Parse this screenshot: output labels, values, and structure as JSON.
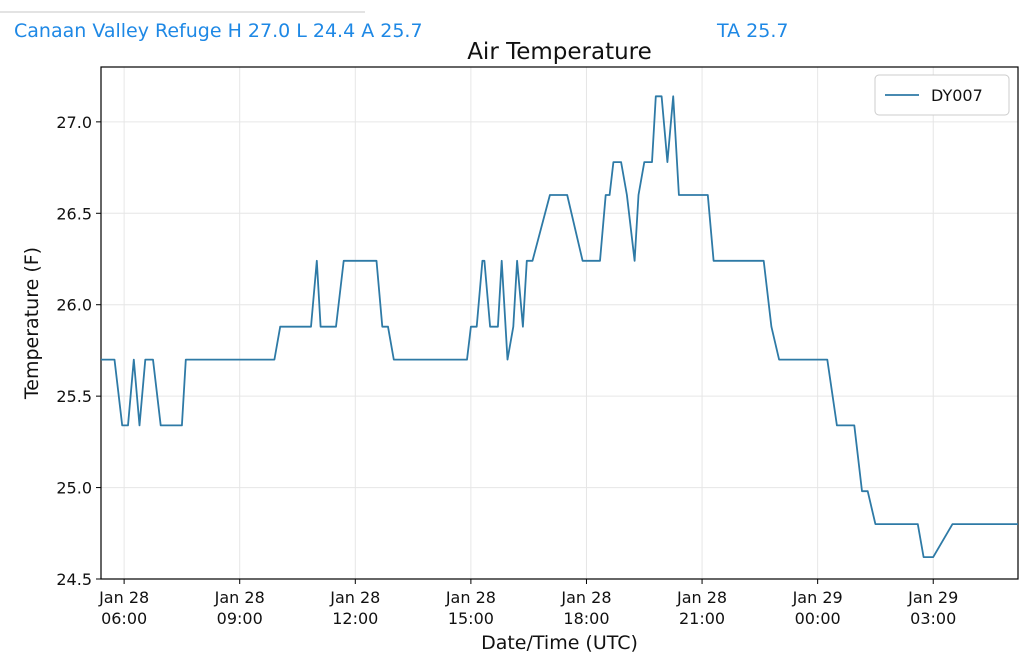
{
  "header": {
    "stats": "Canaan Valley Refuge H 27.0 L 24.4 A 25.7",
    "ta": "TA 25.7"
  },
  "chart_data": {
    "type": "line",
    "title": "Air Temperature",
    "xlabel": "Date/Time (UTC)",
    "ylabel": "Temperature (F)",
    "xlim": [
      5.4,
      29.2
    ],
    "ylim": [
      24.5,
      27.3
    ],
    "y_ticks": [
      {
        "value": 24.5,
        "label": "24.5"
      },
      {
        "value": 25.0,
        "label": "25.0"
      },
      {
        "value": 25.5,
        "label": "25.5"
      },
      {
        "value": 26.0,
        "label": "26.0"
      },
      {
        "value": 26.5,
        "label": "26.5"
      },
      {
        "value": 27.0,
        "label": "27.0"
      }
    ],
    "x_ticks": [
      {
        "value": 6,
        "line1": "Jan 28",
        "line2": "06:00"
      },
      {
        "value": 9,
        "line1": "Jan 28",
        "line2": "09:00"
      },
      {
        "value": 12,
        "line1": "Jan 28",
        "line2": "12:00"
      },
      {
        "value": 15,
        "line1": "Jan 28",
        "line2": "15:00"
      },
      {
        "value": 18,
        "line1": "Jan 28",
        "line2": "18:00"
      },
      {
        "value": 21,
        "line1": "Jan 28",
        "line2": "21:00"
      },
      {
        "value": 24,
        "line1": "Jan 29",
        "line2": "00:00"
      },
      {
        "value": 27,
        "line1": "Jan 29",
        "line2": "03:00"
      }
    ],
    "grid": true,
    "legend_position": "top-right",
    "series": [
      {
        "name": "DY007",
        "color": "#2e7aa6",
        "x": [
          5.4,
          5.75,
          5.95,
          6.1,
          6.25,
          6.4,
          6.55,
          6.75,
          6.95,
          7.1,
          7.5,
          7.6,
          7.75,
          8.2,
          8.6,
          9,
          9.5,
          9.9,
          10.05,
          10.5,
          10.85,
          11,
          11.1,
          11.5,
          11.7,
          12,
          12.5,
          12.55,
          12.7,
          12.85,
          13,
          13.5,
          14,
          14.5,
          14.9,
          15,
          15.15,
          15.3,
          15.35,
          15.5,
          15.7,
          15.8,
          15.95,
          16.1,
          16.2,
          16.35,
          16.45,
          16.6,
          17.05,
          17.5,
          17.9,
          18.25,
          18.35,
          18.5,
          18.6,
          18.7,
          18.9,
          19.05,
          19.25,
          19.35,
          19.5,
          19.7,
          19.8,
          19.95,
          20.1,
          20.25,
          20.4,
          20.8,
          21.15,
          21.3,
          21.5,
          22,
          22.5,
          22.6,
          22.8,
          23,
          23.5,
          24,
          24.25,
          24.5,
          24.95,
          25.15,
          25.3,
          25.5,
          25.9,
          26.2,
          26.6,
          26.75,
          27,
          27.5,
          28,
          28.5,
          29.2
        ],
        "y": [
          25.7,
          25.7,
          25.34,
          25.34,
          25.7,
          25.34,
          25.7,
          25.7,
          25.34,
          25.34,
          25.34,
          25.7,
          25.7,
          25.7,
          25.7,
          25.7,
          25.7,
          25.7,
          25.88,
          25.88,
          25.88,
          26.24,
          25.88,
          25.88,
          26.24,
          26.24,
          26.24,
          26.24,
          25.88,
          25.88,
          25.7,
          25.7,
          25.7,
          25.7,
          25.7,
          25.88,
          25.88,
          26.24,
          26.24,
          25.88,
          25.88,
          26.24,
          25.7,
          25.88,
          26.24,
          25.88,
          26.24,
          26.24,
          26.6,
          26.6,
          26.24,
          26.24,
          26.24,
          26.6,
          26.6,
          26.78,
          26.78,
          26.6,
          26.24,
          26.6,
          26.78,
          26.78,
          27.14,
          27.14,
          26.78,
          27.14,
          26.6,
          26.6,
          26.6,
          26.24,
          26.24,
          26.24,
          26.24,
          26.24,
          25.88,
          25.7,
          25.7,
          25.7,
          25.7,
          25.34,
          25.34,
          24.98,
          24.98,
          24.8,
          24.8,
          24.8,
          24.8,
          24.62,
          24.62,
          24.8,
          24.8,
          24.8,
          24.8
        ]
      }
    ]
  }
}
